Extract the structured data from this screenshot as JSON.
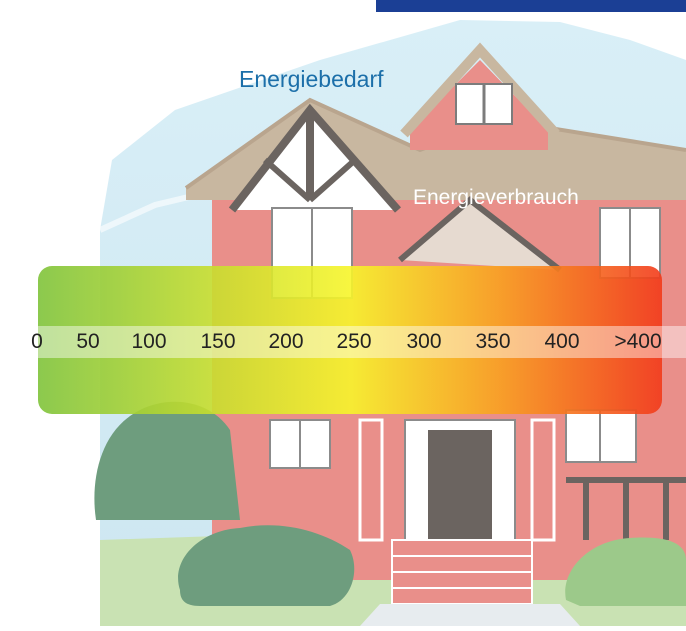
{
  "labels": {
    "energy_demand": "Energiebedarf",
    "energy_consumption": "Energieverbrauch"
  },
  "scale": {
    "ticks": [
      "0",
      "50",
      "100",
      "150",
      "200",
      "250",
      "300",
      "350",
      "400",
      ">400"
    ],
    "gradient_colors": [
      "#7fc33a",
      "#c8de2e",
      "#f7f52a",
      "#f9a020",
      "#f23a1a"
    ]
  },
  "colors": {
    "sky": "#d6edf6",
    "house_wall": "#e98f8a",
    "roof": "#c8b7a0",
    "timber": "#6b6460",
    "label_blue": "#1c6fa9",
    "top_bar": "#1b3f95"
  }
}
